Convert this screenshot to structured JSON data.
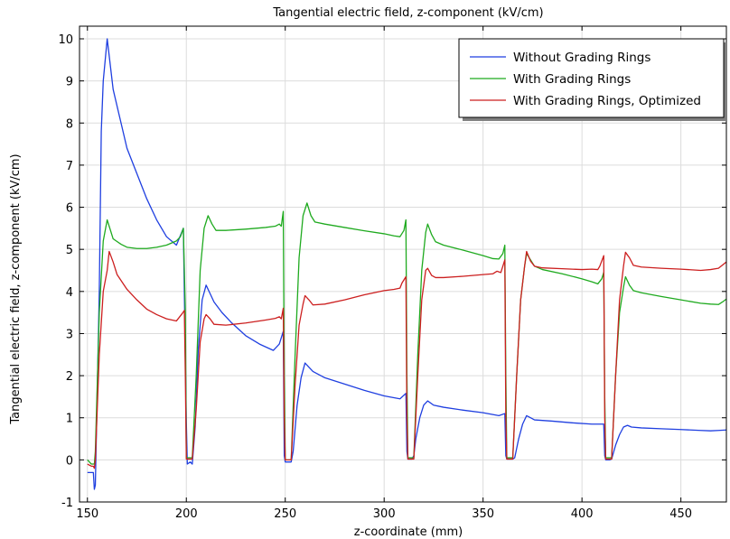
{
  "chart_data": {
    "type": "line",
    "title": "Tangential electric field, z-component (kV/cm)",
    "xlabel": "z-coordinate (mm)",
    "ylabel": "Tangential electric field, z-component (kV/cm)",
    "xlim": [
      146,
      473
    ],
    "ylim": [
      -1,
      10.3
    ],
    "xticks": [
      150,
      200,
      250,
      300,
      350,
      400,
      450
    ],
    "yticks": [
      -1,
      0,
      1,
      2,
      3,
      4,
      5,
      6,
      7,
      8,
      9,
      10
    ],
    "grid": true,
    "legend_position": "top-right",
    "series": [
      {
        "name": "Without Grading Rings",
        "color": "#1f3fe0",
        "points": [
          [
            150,
            -0.3
          ],
          [
            152,
            -0.3
          ],
          [
            153,
            -0.3
          ],
          [
            153.5,
            -0.7
          ],
          [
            154,
            -0.6
          ],
          [
            156,
            4
          ],
          [
            157,
            7.8
          ],
          [
            158,
            9.0
          ],
          [
            160,
            10.0
          ],
          [
            163,
            8.8
          ],
          [
            167,
            8.0
          ],
          [
            170,
            7.4
          ],
          [
            175,
            6.8
          ],
          [
            180,
            6.2
          ],
          [
            185,
            5.7
          ],
          [
            190,
            5.3
          ],
          [
            195,
            5.1
          ],
          [
            198.5,
            5.5
          ],
          [
            200,
            0.9
          ],
          [
            200.5,
            -0.1
          ],
          [
            202,
            -0.05
          ],
          [
            203,
            -0.1
          ],
          [
            204.5,
            0.8
          ],
          [
            206,
            2.6
          ],
          [
            208,
            3.8
          ],
          [
            210,
            4.15
          ],
          [
            212,
            3.95
          ],
          [
            214,
            3.75
          ],
          [
            218,
            3.5
          ],
          [
            223,
            3.25
          ],
          [
            230,
            2.95
          ],
          [
            237,
            2.75
          ],
          [
            244,
            2.6
          ],
          [
            247,
            2.75
          ],
          [
            249,
            3.05
          ],
          [
            249.5,
            0.1
          ],
          [
            250,
            -0.05
          ],
          [
            252,
            -0.05
          ],
          [
            253,
            -0.05
          ],
          [
            254,
            0.2
          ],
          [
            256,
            1.3
          ],
          [
            258,
            1.95
          ],
          [
            260,
            2.3
          ],
          [
            262,
            2.2
          ],
          [
            264,
            2.1
          ],
          [
            270,
            1.95
          ],
          [
            280,
            1.8
          ],
          [
            290,
            1.65
          ],
          [
            300,
            1.52
          ],
          [
            308,
            1.45
          ],
          [
            311,
            1.58
          ],
          [
            311.5,
            0.2
          ],
          [
            312,
            0.02
          ],
          [
            314,
            0.02
          ],
          [
            315,
            0.1
          ],
          [
            316,
            0.5
          ],
          [
            318,
            1.0
          ],
          [
            320,
            1.3
          ],
          [
            322,
            1.4
          ],
          [
            325,
            1.3
          ],
          [
            330,
            1.25
          ],
          [
            340,
            1.18
          ],
          [
            350,
            1.12
          ],
          [
            358,
            1.05
          ],
          [
            361,
            1.1
          ],
          [
            361.5,
            0.1
          ],
          [
            362,
            0.02
          ],
          [
            365,
            0.02
          ],
          [
            366,
            0.05
          ],
          [
            368,
            0.5
          ],
          [
            370,
            0.85
          ],
          [
            372,
            1.05
          ],
          [
            374,
            1.0
          ],
          [
            376,
            0.95
          ],
          [
            385,
            0.92
          ],
          [
            395,
            0.88
          ],
          [
            405,
            0.85
          ],
          [
            410,
            0.85
          ],
          [
            411,
            0.85
          ],
          [
            411.5,
            0.1
          ],
          [
            412,
            0.0
          ],
          [
            414,
            0.0
          ],
          [
            415,
            0.02
          ],
          [
            417,
            0.35
          ],
          [
            419,
            0.6
          ],
          [
            421,
            0.78
          ],
          [
            423,
            0.82
          ],
          [
            425,
            0.78
          ],
          [
            430,
            0.76
          ],
          [
            440,
            0.74
          ],
          [
            450,
            0.72
          ],
          [
            460,
            0.7
          ],
          [
            465,
            0.69
          ],
          [
            469,
            0.7
          ],
          [
            473,
            0.71
          ]
        ]
      },
      {
        "name": "With Grading Rings",
        "color": "#1faa1f",
        "points": [
          [
            150,
            0.0
          ],
          [
            152,
            -0.1
          ],
          [
            153,
            -0.1
          ],
          [
            153.5,
            -0.1
          ],
          [
            154,
            0.2
          ],
          [
            156,
            3.5
          ],
          [
            158,
            5.2
          ],
          [
            160,
            5.7
          ],
          [
            163,
            5.25
          ],
          [
            167,
            5.12
          ],
          [
            170,
            5.05
          ],
          [
            175,
            5.02
          ],
          [
            180,
            5.02
          ],
          [
            185,
            5.05
          ],
          [
            190,
            5.1
          ],
          [
            195,
            5.2
          ],
          [
            197,
            5.3
          ],
          [
            198.5,
            5.5
          ],
          [
            199.5,
            3.5
          ],
          [
            200,
            0.05
          ],
          [
            202,
            0.05
          ],
          [
            203,
            0.05
          ],
          [
            205,
            2.0
          ],
          [
            207,
            4.5
          ],
          [
            209,
            5.5
          ],
          [
            211,
            5.8
          ],
          [
            213,
            5.6
          ],
          [
            215,
            5.45
          ],
          [
            220,
            5.45
          ],
          [
            230,
            5.48
          ],
          [
            240,
            5.52
          ],
          [
            245,
            5.55
          ],
          [
            247,
            5.6
          ],
          [
            248,
            5.55
          ],
          [
            249,
            5.9
          ],
          [
            249.5,
            2.0
          ],
          [
            250,
            0.0
          ],
          [
            253,
            0.0
          ],
          [
            255,
            2.5
          ],
          [
            257,
            4.8
          ],
          [
            259,
            5.8
          ],
          [
            261,
            6.1
          ],
          [
            263,
            5.8
          ],
          [
            265,
            5.65
          ],
          [
            270,
            5.6
          ],
          [
            280,
            5.52
          ],
          [
            290,
            5.44
          ],
          [
            300,
            5.37
          ],
          [
            305,
            5.32
          ],
          [
            308,
            5.3
          ],
          [
            310,
            5.45
          ],
          [
            311,
            5.7
          ],
          [
            311.5,
            2.0
          ],
          [
            312,
            0.05
          ],
          [
            315,
            0.05
          ],
          [
            317,
            2.5
          ],
          [
            319,
            4.5
          ],
          [
            321,
            5.4
          ],
          [
            322,
            5.6
          ],
          [
            324,
            5.35
          ],
          [
            326,
            5.18
          ],
          [
            330,
            5.1
          ],
          [
            340,
            4.98
          ],
          [
            350,
            4.85
          ],
          [
            355,
            4.78
          ],
          [
            358,
            4.77
          ],
          [
            360,
            4.9
          ],
          [
            361,
            5.1
          ],
          [
            361.5,
            2.0
          ],
          [
            362,
            0.05
          ],
          [
            365,
            0.05
          ],
          [
            367,
            2.0
          ],
          [
            369,
            3.8
          ],
          [
            371,
            4.6
          ],
          [
            372,
            4.9
          ],
          [
            374,
            4.75
          ],
          [
            376,
            4.6
          ],
          [
            380,
            4.52
          ],
          [
            390,
            4.42
          ],
          [
            400,
            4.3
          ],
          [
            405,
            4.23
          ],
          [
            408,
            4.18
          ],
          [
            410,
            4.3
          ],
          [
            411,
            4.45
          ],
          [
            411.5,
            1.5
          ],
          [
            412,
            0.05
          ],
          [
            415,
            0.05
          ],
          [
            417,
            2.0
          ],
          [
            419,
            3.5
          ],
          [
            421,
            4.1
          ],
          [
            422,
            4.35
          ],
          [
            424,
            4.15
          ],
          [
            426,
            4.02
          ],
          [
            430,
            3.97
          ],
          [
            440,
            3.88
          ],
          [
            450,
            3.8
          ],
          [
            460,
            3.72
          ],
          [
            465,
            3.7
          ],
          [
            469,
            3.69
          ],
          [
            471,
            3.75
          ],
          [
            473,
            3.82
          ]
        ]
      },
      {
        "name": "With Grading Rings, Optimized",
        "color": "#cc1f1f",
        "points": [
          [
            150,
            -0.1
          ],
          [
            152,
            -0.15
          ],
          [
            153,
            -0.15
          ],
          [
            153.5,
            -0.2
          ],
          [
            154,
            0.0
          ],
          [
            156,
            2.5
          ],
          [
            158,
            4.0
          ],
          [
            160,
            4.5
          ],
          [
            161,
            4.95
          ],
          [
            163,
            4.7
          ],
          [
            165,
            4.4
          ],
          [
            170,
            4.05
          ],
          [
            175,
            3.8
          ],
          [
            180,
            3.58
          ],
          [
            185,
            3.45
          ],
          [
            190,
            3.35
          ],
          [
            195,
            3.3
          ],
          [
            198,
            3.48
          ],
          [
            199,
            3.55
          ],
          [
            199.5,
            2.0
          ],
          [
            200,
            0.02
          ],
          [
            202,
            0.02
          ],
          [
            203,
            0.02
          ],
          [
            205,
            1.2
          ],
          [
            207,
            2.8
          ],
          [
            209,
            3.35
          ],
          [
            210,
            3.45
          ],
          [
            212,
            3.35
          ],
          [
            214,
            3.22
          ],
          [
            220,
            3.2
          ],
          [
            230,
            3.25
          ],
          [
            240,
            3.32
          ],
          [
            245,
            3.36
          ],
          [
            247,
            3.4
          ],
          [
            248,
            3.35
          ],
          [
            249,
            3.6
          ],
          [
            249.5,
            1.0
          ],
          [
            250,
            0.0
          ],
          [
            253,
            0.0
          ],
          [
            255,
            1.8
          ],
          [
            257,
            3.2
          ],
          [
            259,
            3.7
          ],
          [
            260,
            3.9
          ],
          [
            262,
            3.8
          ],
          [
            264,
            3.68
          ],
          [
            270,
            3.7
          ],
          [
            280,
            3.8
          ],
          [
            290,
            3.92
          ],
          [
            300,
            4.02
          ],
          [
            305,
            4.05
          ],
          [
            308,
            4.08
          ],
          [
            309,
            4.2
          ],
          [
            311,
            4.35
          ],
          [
            311.5,
            1.0
          ],
          [
            312,
            0.02
          ],
          [
            315,
            0.02
          ],
          [
            317,
            2.0
          ],
          [
            319,
            3.8
          ],
          [
            321,
            4.5
          ],
          [
            322,
            4.55
          ],
          [
            324,
            4.38
          ],
          [
            326,
            4.33
          ],
          [
            330,
            4.33
          ],
          [
            340,
            4.36
          ],
          [
            350,
            4.4
          ],
          [
            355,
            4.42
          ],
          [
            357,
            4.48
          ],
          [
            359,
            4.45
          ],
          [
            361,
            4.75
          ],
          [
            361.5,
            1.0
          ],
          [
            362,
            0.02
          ],
          [
            365,
            0.02
          ],
          [
            367,
            2.0
          ],
          [
            369,
            3.8
          ],
          [
            371,
            4.6
          ],
          [
            372,
            4.95
          ],
          [
            374,
            4.72
          ],
          [
            376,
            4.6
          ],
          [
            380,
            4.56
          ],
          [
            390,
            4.54
          ],
          [
            400,
            4.52
          ],
          [
            405,
            4.53
          ],
          [
            408,
            4.52
          ],
          [
            409,
            4.6
          ],
          [
            411,
            4.85
          ],
          [
            411.5,
            1.0
          ],
          [
            412,
            0.02
          ],
          [
            415,
            0.02
          ],
          [
            417,
            2.0
          ],
          [
            419,
            3.8
          ],
          [
            421,
            4.6
          ],
          [
            422,
            4.93
          ],
          [
            424,
            4.8
          ],
          [
            426,
            4.62
          ],
          [
            430,
            4.58
          ],
          [
            440,
            4.55
          ],
          [
            450,
            4.53
          ],
          [
            460,
            4.5
          ],
          [
            465,
            4.52
          ],
          [
            469,
            4.55
          ],
          [
            473,
            4.7
          ]
        ]
      }
    ]
  }
}
